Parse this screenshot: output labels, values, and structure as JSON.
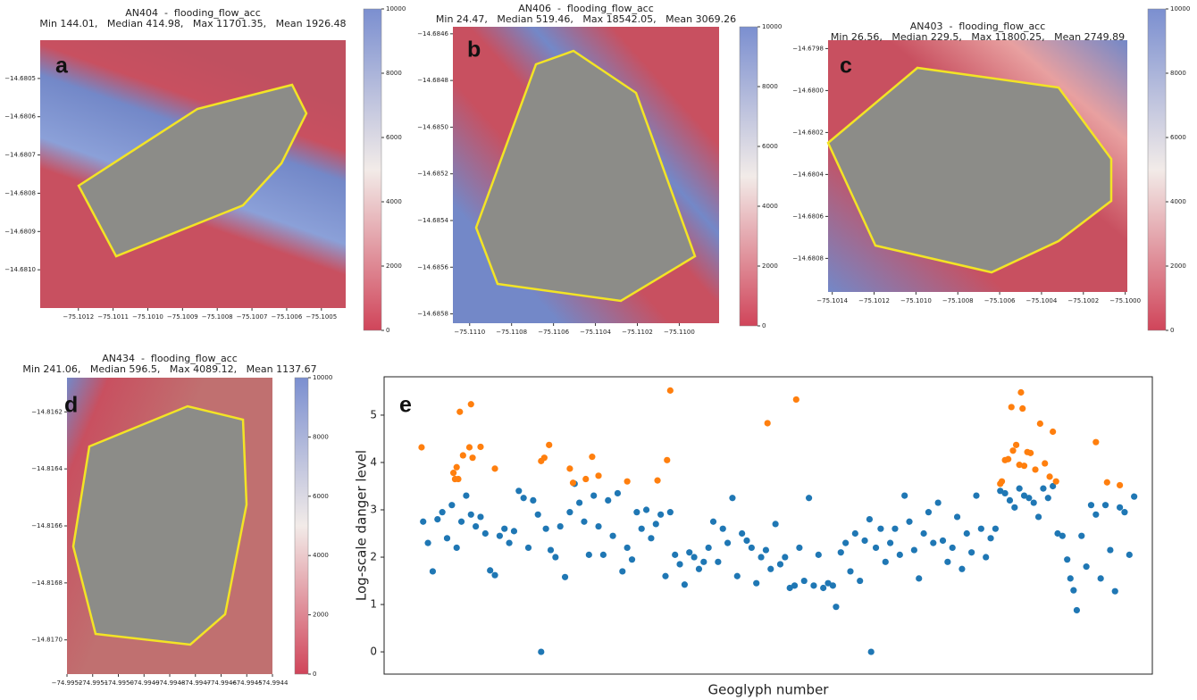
{
  "chart_data": [
    {
      "type": "image",
      "label": "a",
      "title": "AN404  -  flooding_flow_acc",
      "subtitle": "Min 144.01,   Median 414.98,   Max 11701.35,   Mean 1926.48",
      "xlim": [
        -75.10131,
        -75.10043
      ],
      "ylim": [
        -14.6811,
        -14.6804
      ],
      "xticks": [
        {
          "value": -75.1012,
          "label": "−75.1012"
        },
        {
          "value": -75.1011,
          "label": "−75.1011"
        },
        {
          "value": -75.101,
          "label": "−75.1010"
        },
        {
          "value": -75.1009,
          "label": "−75.1009"
        },
        {
          "value": -75.1008,
          "label": "−75.1008"
        },
        {
          "value": -75.1007,
          "label": "−75.1007"
        },
        {
          "value": -75.1006,
          "label": "−75.1006"
        },
        {
          "value": -75.1005,
          "label": "−75.1005"
        }
      ],
      "yticks": [
        {
          "value": -14.6805,
          "label": "−14.6805"
        },
        {
          "value": -14.6806,
          "label": "−14.6806"
        },
        {
          "value": -14.6807,
          "label": "−14.6807"
        },
        {
          "value": -14.6808,
          "label": "−14.6808"
        },
        {
          "value": -14.6809,
          "label": "−14.6809"
        },
        {
          "value": -14.681,
          "label": "−14.6810"
        }
      ],
      "clim": [
        0,
        10000
      ],
      "cticks": [
        0,
        2000,
        4000,
        6000,
        8000,
        10000
      ]
    },
    {
      "type": "image",
      "label": "b",
      "title": "AN406  -  flooding_flow_acc",
      "subtitle": "Min 24.47,   Median 519.46,   Max 18542.05,   Mean 3069.26",
      "xlim": [
        -75.11108,
        -75.10981
      ],
      "ylim": [
        -14.68584,
        -14.68457
      ],
      "xticks": [
        {
          "value": -75.111,
          "label": "−75.1110"
        },
        {
          "value": -75.1108,
          "label": "−75.1108"
        },
        {
          "value": -75.1106,
          "label": "−75.1106"
        },
        {
          "value": -75.1104,
          "label": "−75.1104"
        },
        {
          "value": -75.1102,
          "label": "−75.1102"
        },
        {
          "value": -75.11,
          "label": "−75.1100"
        }
      ],
      "yticks": [
        {
          "value": -14.6846,
          "label": "−14.6846"
        },
        {
          "value": -14.6848,
          "label": "−14.6848"
        },
        {
          "value": -14.685,
          "label": "−14.6850"
        },
        {
          "value": -14.6852,
          "label": "−14.6852"
        },
        {
          "value": -14.6854,
          "label": "−14.6854"
        },
        {
          "value": -14.6856,
          "label": "−14.6856"
        },
        {
          "value": -14.6858,
          "label": "−14.6858"
        }
      ],
      "clim": [
        0,
        10000
      ],
      "cticks": [
        0,
        2000,
        4000,
        6000,
        8000,
        10000
      ]
    },
    {
      "type": "image",
      "label": "c",
      "title": "AN403  -  flooding_flow_acc",
      "subtitle": "Min 26.56,   Median 229.5,   Max 11800.25,   Mean 2749.89",
      "xlim": [
        -75.10142,
        -75.09999
      ],
      "ylim": [
        -14.68096,
        -14.67976
      ],
      "xticks": [
        {
          "value": -75.1014,
          "label": "−75.1014"
        },
        {
          "value": -75.1012,
          "label": "−75.1012"
        },
        {
          "value": -75.101,
          "label": "−75.1010"
        },
        {
          "value": -75.1008,
          "label": "−75.1008"
        },
        {
          "value": -75.1006,
          "label": "−75.1006"
        },
        {
          "value": -75.1004,
          "label": "−75.1004"
        },
        {
          "value": -75.1002,
          "label": "−75.1002"
        },
        {
          "value": -75.1,
          "label": "−75.1000"
        }
      ],
      "yticks": [
        {
          "value": -14.6798,
          "label": "−14.6798"
        },
        {
          "value": -14.68,
          "label": "−14.6800"
        },
        {
          "value": -14.6802,
          "label": "−14.6802"
        },
        {
          "value": -14.6804,
          "label": "−14.6804"
        },
        {
          "value": -14.6806,
          "label": "−14.6806"
        },
        {
          "value": -14.6808,
          "label": "−14.6808"
        }
      ],
      "clim": [
        0,
        10000
      ],
      "cticks": [
        0,
        2000,
        4000,
        6000,
        8000,
        10000
      ]
    },
    {
      "type": "image",
      "label": "d",
      "title": "AN434  -  flooding_flow_acc",
      "subtitle": "Min 241.06,   Median 596.5,   Max 4089.12,   Mean 1137.67",
      "xlim": [
        -74.9952,
        -74.9944
      ],
      "ylim": [
        -14.81712,
        -14.81608
      ],
      "xticks": [
        {
          "value": -74.9952,
          "label": "−74.9952"
        },
        {
          "value": -74.9951,
          "label": "−74.9951"
        },
        {
          "value": -74.995,
          "label": "−74.9950"
        },
        {
          "value": -74.9949,
          "label": "−74.9949"
        },
        {
          "value": -74.9948,
          "label": "−74.9948"
        },
        {
          "value": -74.9947,
          "label": "−74.9947"
        },
        {
          "value": -74.9946,
          "label": "−74.9946"
        },
        {
          "value": -74.9945,
          "label": "−74.9945"
        },
        {
          "value": -74.9944,
          "label": "−74.9944"
        }
      ],
      "yticks": [
        {
          "value": -14.8162,
          "label": "−14.8162"
        },
        {
          "value": -14.8164,
          "label": "−14.8164"
        },
        {
          "value": -14.8166,
          "label": "−14.8166"
        },
        {
          "value": -14.8168,
          "label": "−14.8168"
        },
        {
          "value": -14.817,
          "label": "−14.8170"
        }
      ],
      "clim": [
        0,
        10000
      ],
      "cticks": [
        0,
        2000,
        4000,
        6000,
        8000,
        10000
      ]
    },
    {
      "type": "scatter",
      "label": "e",
      "ylabel": "Log-scale danger level",
      "xlabel": "Geoglyph number",
      "xlim": [
        -23.5,
        458.4
      ],
      "ylim": [
        -0.47,
        5.81
      ],
      "yticks": [
        0,
        1,
        2,
        3,
        4,
        5
      ],
      "series": [
        {
          "color": "#1f77b4",
          "x": [
            1,
            4,
            7,
            10,
            13,
            16,
            19,
            22,
            25,
            28,
            31,
            34,
            37,
            40,
            43,
            46,
            49,
            52,
            55,
            58,
            61,
            64,
            67,
            70,
            73,
            75,
            78,
            81,
            84,
            87,
            90,
            93,
            96,
            99,
            102,
            105,
            108,
            111,
            114,
            117,
            120,
            123,
            126,
            129,
            132,
            135,
            138,
            141,
            144,
            147,
            150,
            153,
            156,
            159,
            162,
            165,
            168,
            171,
            174,
            177,
            180,
            183,
            186,
            189,
            192,
            195,
            198,
            201,
            204,
            207,
            210,
            213,
            216,
            219,
            222,
            225,
            228,
            231,
            234,
            237,
            240,
            243,
            246,
            249,
            252,
            255,
            258,
            260,
            263,
            266,
            269,
            272,
            275,
            278,
            281,
            282,
            285,
            288,
            291,
            294,
            297,
            300,
            303,
            306,
            309,
            312,
            315,
            318,
            321,
            324,
            327,
            330,
            333,
            336,
            339,
            342,
            345,
            348,
            351,
            354,
            357,
            360,
            363,
            366,
            369,
            372,
            375,
            378,
            381,
            384,
            387,
            390,
            393,
            396,
            399,
            402,
            405,
            407,
            409,
            411,
            414,
            417,
            420,
            423,
            426,
            429,
            432,
            435,
            438,
            441,
            444,
            447
          ],
          "values": [
            2.75,
            2.3,
            1.7,
            2.8,
            2.95,
            2.4,
            3.1,
            2.2,
            2.75,
            3.3,
            2.9,
            2.65,
            2.85,
            2.5,
            1.72,
            1.62,
            2.45,
            2.6,
            2.3,
            2.55,
            3.4,
            3.25,
            2.2,
            3.2,
            2.9,
            0.0,
            2.6,
            2.15,
            2.0,
            2.65,
            1.58,
            2.95,
            3.55,
            3.15,
            2.75,
            2.05,
            3.3,
            2.65,
            2.05,
            3.2,
            2.45,
            3.35,
            1.7,
            2.2,
            1.95,
            2.95,
            2.6,
            3.0,
            2.4,
            2.7,
            2.9,
            1.6,
            2.95,
            2.05,
            1.85,
            1.42,
            2.1,
            2.0,
            1.75,
            1.9,
            2.2,
            2.75,
            1.9,
            2.6,
            2.3,
            3.25,
            1.6,
            2.5,
            2.35,
            2.2,
            1.45,
            2.0,
            2.15,
            1.75,
            2.7,
            1.85,
            2.0,
            1.35,
            1.4,
            2.2,
            1.5,
            3.25,
            1.4,
            2.05,
            1.35,
            1.45,
            1.4,
            0.95,
            2.1,
            2.3,
            1.7,
            2.5,
            1.5,
            2.35,
            2.8,
            0.0,
            2.2,
            2.6,
            1.9,
            2.3,
            2.6,
            2.05,
            3.3,
            2.75,
            2.15,
            1.55,
            2.5,
            2.95,
            2.3,
            3.15,
            2.35,
            1.9,
            2.2,
            2.85,
            1.75,
            2.5,
            2.1,
            3.3,
            2.6,
            2.0,
            2.4,
            2.6,
            3.4,
            3.35,
            3.2,
            3.05,
            3.45,
            3.3,
            3.25,
            3.15,
            2.85,
            3.45,
            3.25,
            3.5,
            2.5,
            2.45,
            1.95,
            1.55,
            1.3,
            0.88,
            2.45,
            1.8,
            3.1,
            2.9,
            1.55,
            3.1,
            2.15,
            1.28,
            3.05,
            2.95,
            2.05,
            3.28
          ]
        },
        {
          "color": "#ff7f0e",
          "x": [
            0,
            20,
            21,
            22,
            23,
            24,
            26,
            30,
            31,
            32,
            37,
            46,
            75,
            77,
            80,
            93,
            95,
            103,
            107,
            111,
            129,
            148,
            154,
            156,
            217,
            235,
            363,
            364,
            366,
            368,
            370,
            371,
            373,
            375,
            376,
            377,
            378,
            380,
            382,
            385,
            388,
            391,
            394,
            396,
            398,
            423,
            430,
            438
          ],
          "values": [
            4.32,
            3.78,
            3.65,
            3.9,
            3.65,
            5.07,
            4.15,
            4.32,
            5.23,
            4.1,
            4.33,
            3.87,
            4.03,
            4.1,
            4.37,
            3.87,
            3.57,
            3.65,
            4.12,
            3.72,
            3.6,
            3.62,
            4.05,
            5.52,
            4.83,
            5.33,
            3.55,
            3.6,
            4.05,
            4.07,
            5.17,
            4.25,
            4.37,
            3.95,
            5.48,
            5.14,
            3.93,
            4.22,
            4.2,
            3.85,
            4.82,
            3.98,
            3.7,
            4.65,
            3.6,
            4.43,
            3.58,
            3.52
          ]
        }
      ]
    }
  ]
}
